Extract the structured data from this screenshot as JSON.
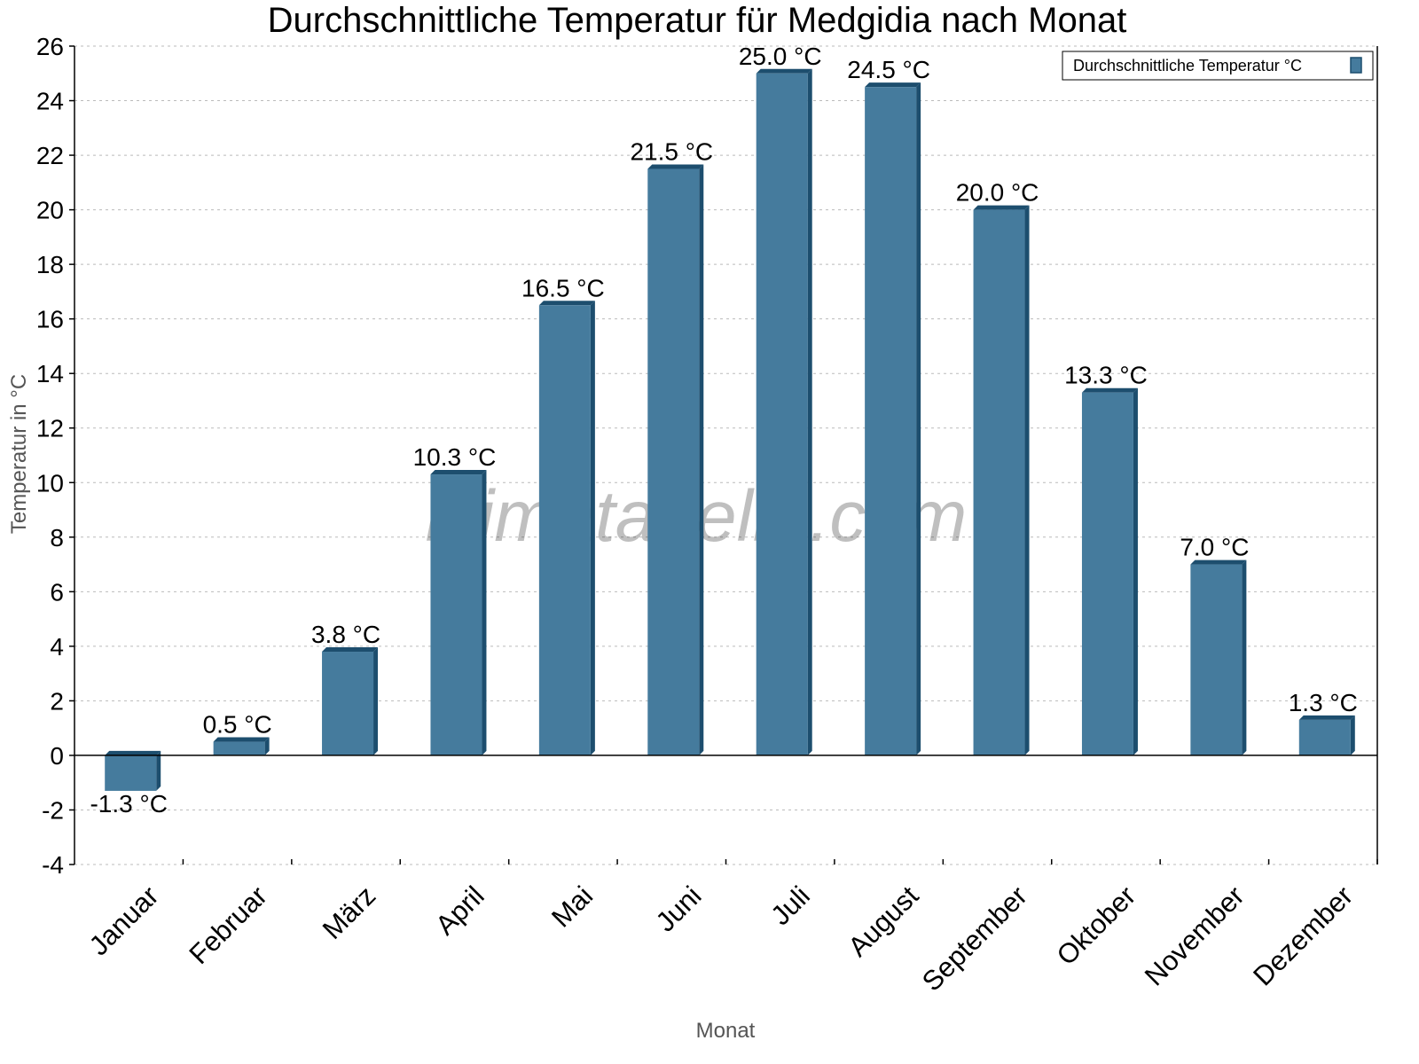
{
  "chart_data": {
    "type": "bar",
    "title": "Durchschnittliche Temperatur für Medgidia nach Monat",
    "xlabel": "Monat",
    "ylabel": "Temperatur in °C",
    "ylim": [
      -4,
      26
    ],
    "yticks": [
      -4,
      -2,
      0,
      2,
      4,
      6,
      8,
      10,
      12,
      14,
      16,
      18,
      20,
      22,
      24,
      26
    ],
    "grid": true,
    "legend_position": "top-right",
    "categories": [
      "Januar",
      "Februar",
      "März",
      "April",
      "Mai",
      "Juni",
      "Juli",
      "August",
      "September",
      "Oktober",
      "November",
      "Dezember"
    ],
    "series": [
      {
        "name": "Durchschnittliche Temperatur °C",
        "values": [
          -1.3,
          0.5,
          3.8,
          10.3,
          16.5,
          21.5,
          25.0,
          24.5,
          20.0,
          13.3,
          7.0,
          1.3
        ],
        "labels": [
          "-1.3 °C",
          "0.5 °C",
          "3.8 °C",
          "10.3 °C",
          "16.5 °C",
          "21.5 °C",
          "25.0 °C",
          "24.5 °C",
          "20.0 °C",
          "13.3 °C",
          "7.0 °C",
          "1.3 °C"
        ]
      }
    ],
    "colors": {
      "bar_front": "#457b9d",
      "bar_side": "#1d4e6e"
    }
  },
  "watermark": "klimatabelle.com"
}
